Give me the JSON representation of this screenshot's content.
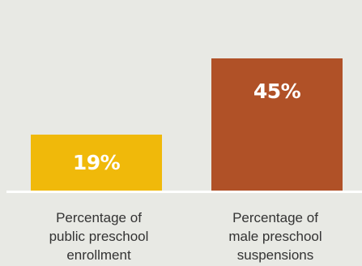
{
  "chart_data": {
    "type": "bar",
    "categories": [
      "Percentage of public preschool enrollment",
      "Percentage of male preschool suspensions"
    ],
    "category_lines": [
      [
        "Percentage of",
        "public preschool",
        "enrollment"
      ],
      [
        "Percentage of",
        "male preschool",
        "suspensions"
      ]
    ],
    "values": [
      19,
      45
    ],
    "value_labels": [
      "19%",
      "45%"
    ],
    "colors": [
      "#f0b90a",
      "#b05127"
    ],
    "ylim": [
      0,
      50
    ],
    "grid": false,
    "legend": "none",
    "title": "",
    "xlabel": "",
    "ylabel": ""
  }
}
